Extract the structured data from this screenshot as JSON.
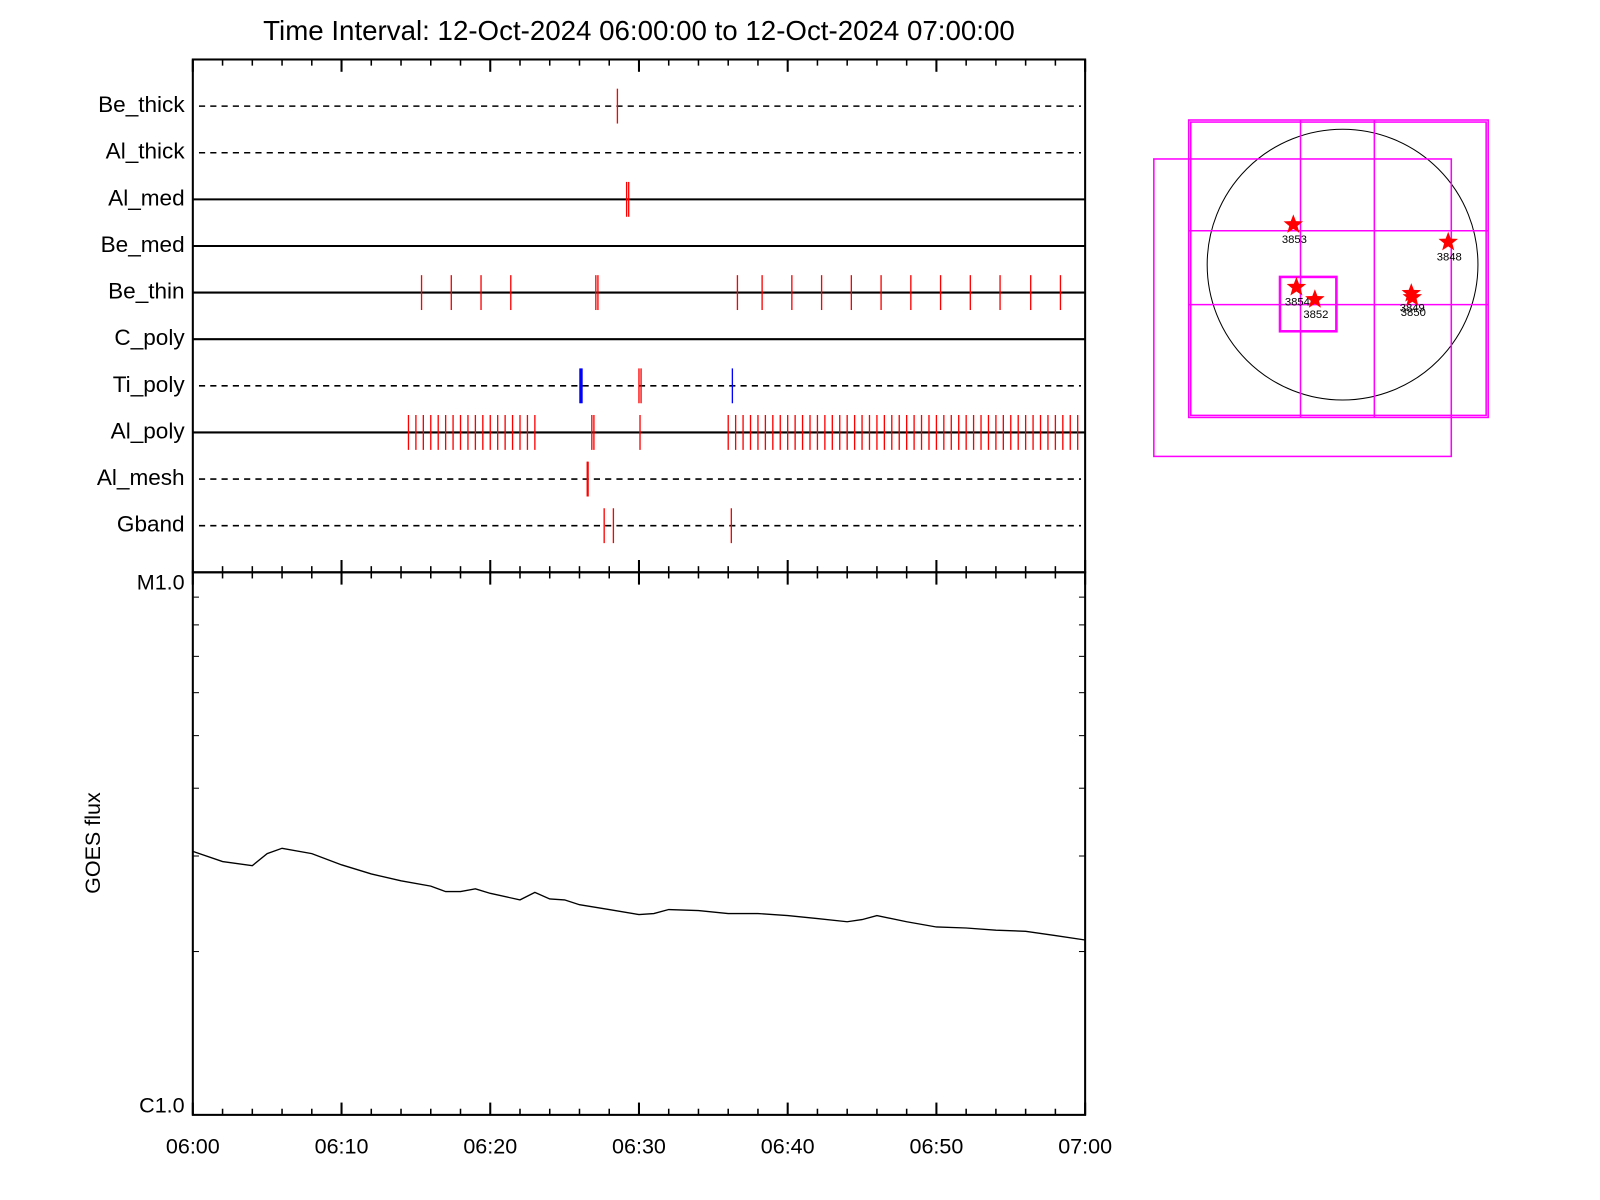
{
  "chart_data": [
    {
      "type": "timeline",
      "title": "Time Interval: 12-Oct-2024 06:00:00 to 12-Oct-2024 07:00:00",
      "xlim": [
        0,
        60
      ],
      "series": [
        {
          "name": "Be_thick",
          "style": "dashed",
          "marks": [
            {
              "color": "#ff0000",
              "x": [
                28.55
              ]
            }
          ]
        },
        {
          "name": "Al_thick",
          "style": "dashed",
          "marks": []
        },
        {
          "name": "Al_med",
          "style": "solid",
          "marks": [
            {
              "color": "#ff0000",
              "x": [
                29.17,
                29.31
              ]
            }
          ]
        },
        {
          "name": "Be_med",
          "style": "solid",
          "marks": []
        },
        {
          "name": "Be_thin",
          "style": "solid",
          "marks": [
            {
              "color": "#ff0000",
              "x": [
                15.38,
                17.38,
                19.38,
                21.38,
                27.1,
                27.24,
                36.62,
                38.28,
                40.28,
                42.28,
                44.28,
                46.28,
                48.28,
                50.28,
                52.28,
                54.28,
                56.34,
                58.34
              ]
            }
          ]
        },
        {
          "name": "C_poly",
          "style": "solid",
          "marks": []
        },
        {
          "name": "Ti_poly",
          "style": "dashed",
          "marks": [
            {
              "color": "#0000ff",
              "x": [
                26.03,
                26.1,
                26.17,
                36.28
              ]
            },
            {
              "color": "#ff0000",
              "x": [
                30.0,
                30.14
              ]
            }
          ]
        },
        {
          "name": "Al_poly",
          "style": "solid",
          "marks": [
            {
              "color": "#ff0000",
              "x": [
                14.5,
                15,
                15.5,
                16,
                16.5,
                17,
                17.5,
                18,
                18.5,
                19,
                19.5,
                20,
                20.5,
                21,
                21.5,
                22,
                22.5,
                23,
                26.83,
                26.97,
                30.07,
                36,
                36.5,
                37,
                37.5,
                38,
                38.5,
                39,
                39.5,
                40,
                40.5,
                41,
                41.5,
                42,
                42.5,
                43,
                43.5,
                44,
                44.5,
                45,
                45.5,
                46,
                46.5,
                47,
                47.5,
                48,
                48.5,
                49,
                49.5,
                50,
                50.5,
                51,
                51.5,
                52,
                52.5,
                53,
                53.5,
                54,
                54.5,
                55,
                55.5,
                56,
                56.5,
                57,
                57.5,
                58,
                58.5,
                59,
                59.5
              ]
            }
          ]
        },
        {
          "name": "Al_mesh",
          "style": "dashed",
          "marks": [
            {
              "color": "#ff0000",
              "x": [
                26.52,
                26.58
              ]
            }
          ]
        },
        {
          "name": "Gband",
          "style": "dashed",
          "marks": [
            {
              "color": "#ff0000",
              "x": [
                27.66,
                28.28,
                36.21
              ]
            }
          ]
        }
      ]
    },
    {
      "type": "line",
      "ylabel": "GOES flux",
      "log_y": true,
      "color": "#000000",
      "xlim": [
        0,
        60
      ],
      "xticks": [
        {
          "value": 0,
          "label": "06:00"
        },
        {
          "value": 10,
          "label": "06:10"
        },
        {
          "value": 20,
          "label": "06:20"
        },
        {
          "value": 30,
          "label": "06:30"
        },
        {
          "value": 40,
          "label": "06:40"
        },
        {
          "value": 50,
          "label": "06:50"
        },
        {
          "value": 60,
          "label": "07:00"
        }
      ],
      "xminorticks": [
        2,
        4,
        6,
        8,
        12,
        14,
        16,
        18,
        22,
        24,
        26,
        28,
        32,
        34,
        36,
        38,
        42,
        44,
        46,
        48,
        52,
        54,
        56,
        58
      ],
      "ylim": [
        1e-06,
        1e-05
      ],
      "yticks": [
        {
          "value": 1e-06,
          "label": "C1.0"
        },
        {
          "value": 1e-05,
          "label": "M1.0"
        }
      ],
      "yminorticks": [
        2e-06,
        3e-06,
        4e-06,
        5e-06,
        6e-06,
        7e-06,
        8e-06,
        9e-06
      ],
      "x": [
        0,
        2,
        4,
        5,
        6,
        8,
        10,
        12,
        14,
        16,
        17,
        18,
        19,
        20,
        22,
        23,
        24,
        25,
        26,
        28,
        30,
        31,
        32,
        34,
        36,
        38,
        40,
        42,
        44,
        45,
        46,
        48,
        50,
        52,
        54,
        56,
        58,
        60
      ],
      "values": [
        3.06e-06,
        2.93e-06,
        2.88e-06,
        3.03e-06,
        3.1e-06,
        3.03e-06,
        2.89e-06,
        2.78e-06,
        2.7e-06,
        2.64e-06,
        2.58e-06,
        2.58e-06,
        2.61e-06,
        2.56e-06,
        2.49e-06,
        2.57e-06,
        2.5e-06,
        2.49e-06,
        2.44e-06,
        2.39e-06,
        2.34e-06,
        2.35e-06,
        2.39e-06,
        2.38e-06,
        2.35e-06,
        2.35e-06,
        2.33e-06,
        2.3e-06,
        2.27e-06,
        2.29e-06,
        2.33e-06,
        2.27e-06,
        2.22e-06,
        2.21e-06,
        2.19e-06,
        2.18e-06,
        2.14e-06,
        2.1e-06
      ]
    },
    {
      "type": "map",
      "labels": [
        "3853",
        "3848",
        "3854",
        "3852",
        "3849",
        "3850"
      ]
    }
  ]
}
